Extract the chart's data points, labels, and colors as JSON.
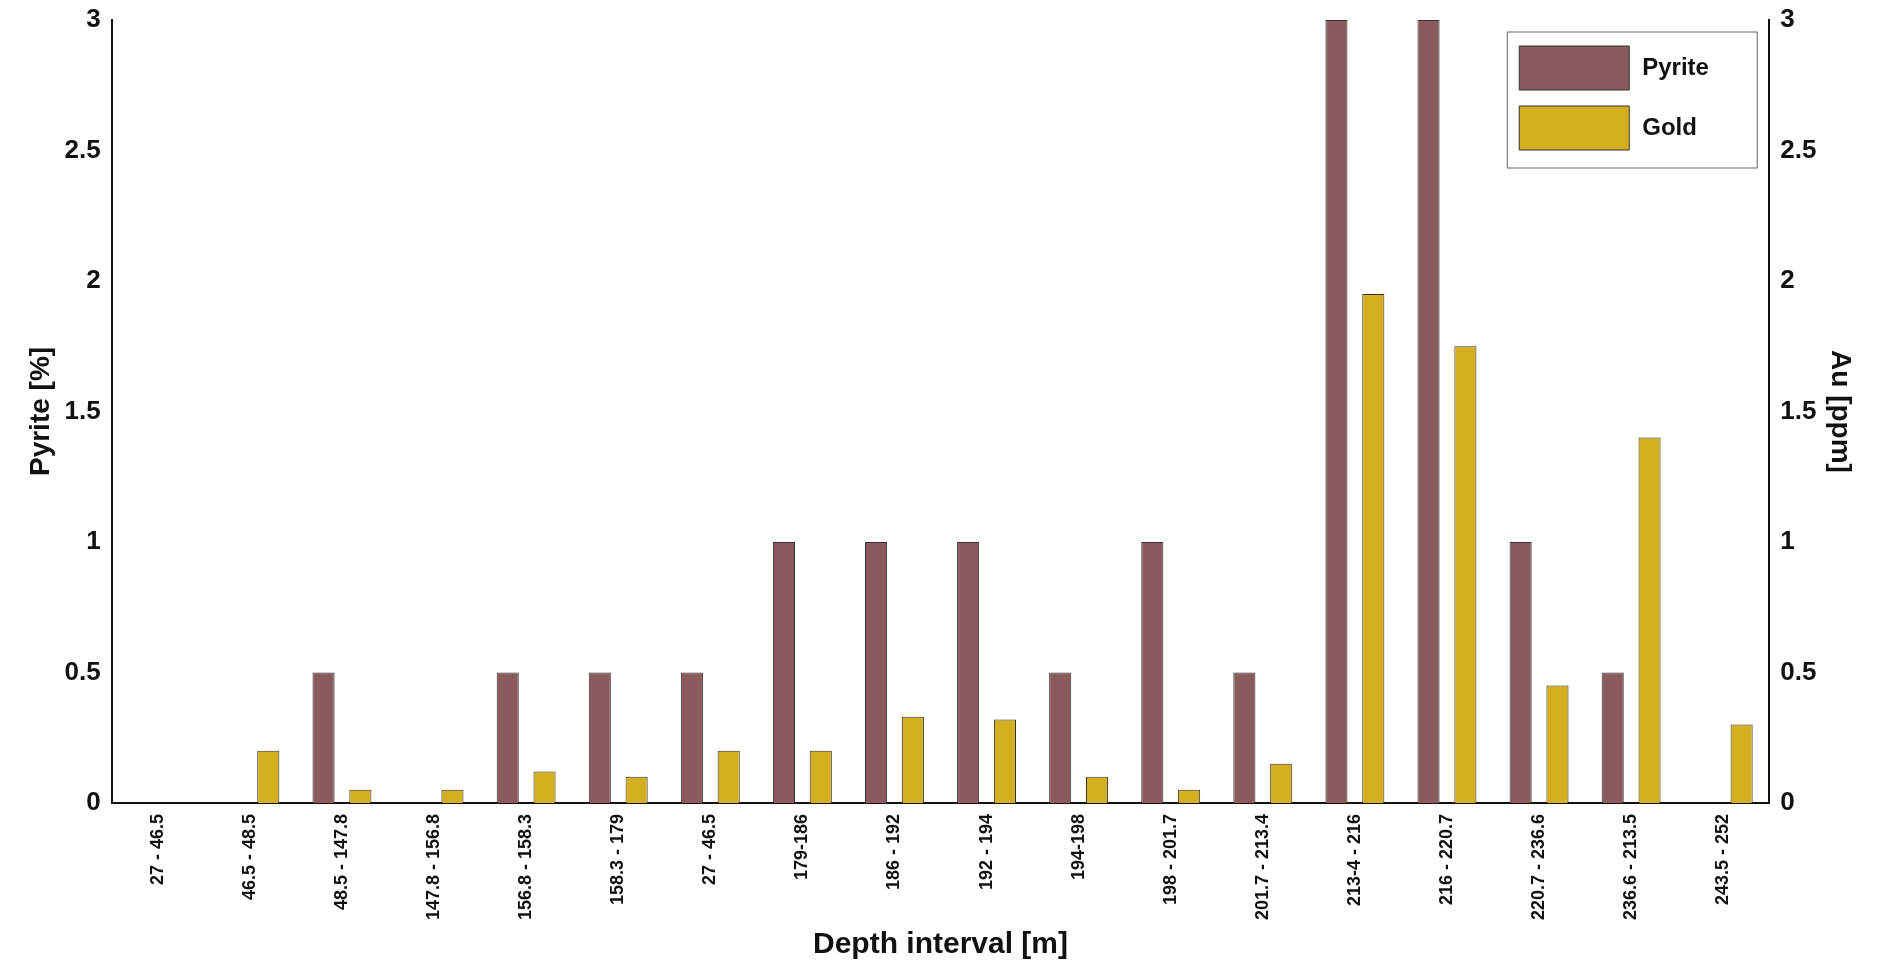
{
  "chart_data": {
    "type": "bar",
    "xlabel": "Depth interval [m]",
    "ylabel": "Pyrite [%]",
    "y2label": "Au [ppm]",
    "categories": [
      "27 - 46.5",
      "46.5 - 48.5",
      "48.5 - 147.8",
      "147.8 - 156.8",
      "156.8 - 158.3",
      "158.3 - 179",
      "27 - 46.5",
      "179-186",
      "186 - 192",
      "192 - 194",
      "194-198",
      "198 - 201.7",
      "201.7 - 213.4",
      "213-4 - 216",
      "216 - 220.7",
      "220.7 - 236.6",
      "236.6 - 213.5",
      "243.5 - 252"
    ],
    "series": [
      {
        "name": "Pyrite",
        "color": "#8b5a5e",
        "values": [
          null,
          null,
          0.5,
          null,
          0.5,
          0.5,
          0.5,
          1,
          1,
          1,
          0.5,
          1,
          0.5,
          3,
          3,
          1,
          0.5,
          null
        ]
      },
      {
        "name": "Gold",
        "color": "#d4b020",
        "axis": "y2",
        "values": [
          null,
          0.2,
          0.05,
          0.05,
          0.12,
          0.1,
          0.2,
          0.2,
          0.33,
          0.32,
          0.1,
          0.05,
          0.15,
          1.95,
          1.75,
          0.45,
          1.4,
          0.3
        ]
      }
    ],
    "ylim": [
      0,
      3
    ],
    "yticks": [
      0,
      0.5,
      1,
      1.5,
      2,
      2.5,
      3
    ],
    "y2lim": [
      0,
      3
    ],
    "y2ticks": [
      0,
      0.5,
      1,
      1.5,
      2,
      2.5,
      3
    ],
    "legend": "top right",
    "grid": false
  }
}
